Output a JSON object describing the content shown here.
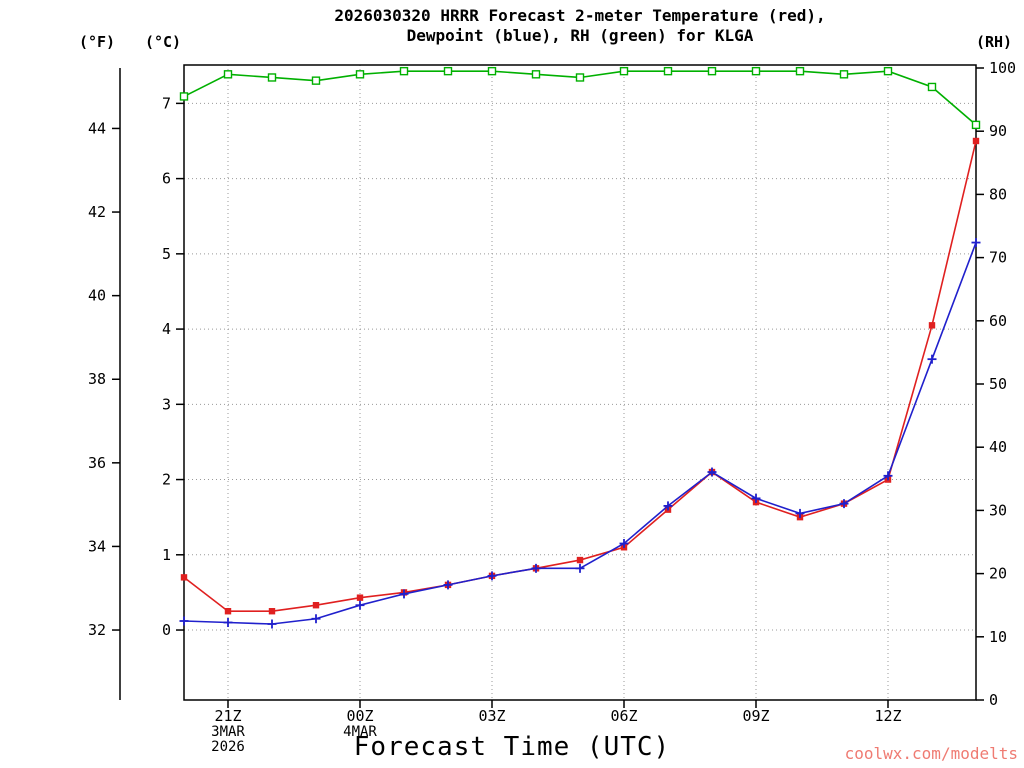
{
  "title": {
    "line1": "2026030320 HRRR Forecast 2-meter Temperature (red),",
    "line2": "Dewpoint (blue), RH (green) for KLGA"
  },
  "axes": {
    "left_f_label": "(°F)",
    "left_c_label": "(°C)",
    "right_label": "(RH)",
    "x_label": "Forecast Time (UTC)",
    "f_ticks": [
      32,
      34,
      36,
      38,
      40,
      42,
      44
    ],
    "c_ticks": [
      0,
      1,
      2,
      3,
      4,
      5,
      6,
      7
    ],
    "rh_ticks": [
      0,
      10,
      20,
      30,
      40,
      50,
      60,
      70,
      80,
      90,
      100
    ],
    "x_ticks": [
      "21Z",
      "00Z",
      "03Z",
      "06Z",
      "09Z",
      "12Z"
    ],
    "x_sub_labels": [
      {
        "tick": "21Z",
        "lines": [
          "3MAR",
          "2026"
        ]
      },
      {
        "tick": "00Z",
        "lines": [
          "4MAR"
        ]
      }
    ]
  },
  "watermark": "coolwx.com/modelts",
  "watermark_color": "#ef7b72",
  "chart_data": {
    "type": "line",
    "station": "KLGA",
    "model": "HRRR",
    "init": "2026030320",
    "x_hours": [
      "20Z",
      "21Z",
      "22Z",
      "23Z",
      "00Z",
      "01Z",
      "02Z",
      "03Z",
      "04Z",
      "05Z",
      "06Z",
      "07Z",
      "08Z",
      "09Z",
      "10Z",
      "11Z",
      "12Z",
      "13Z",
      "14Z"
    ],
    "c_axis_range": [
      -0.93,
      7.51
    ],
    "rh_axis_range": [
      0,
      100
    ],
    "grid": true,
    "series": [
      {
        "key": "temperature",
        "name": "2-meter Temperature",
        "axis": "celsius",
        "marker": "filled-square",
        "color": "#e02020",
        "values": [
          0.7,
          0.25,
          0.25,
          0.33,
          0.43,
          0.5,
          0.6,
          0.72,
          0.82,
          0.93,
          1.1,
          1.6,
          2.1,
          1.7,
          1.5,
          1.68,
          2.0,
          4.05,
          6.5
        ]
      },
      {
        "key": "dewpoint",
        "name": "Dewpoint",
        "axis": "celsius",
        "marker": "plus",
        "color": "#2020cc",
        "values": [
          0.12,
          0.1,
          0.08,
          0.15,
          0.33,
          0.48,
          0.6,
          0.72,
          0.82,
          0.82,
          1.15,
          1.65,
          2.1,
          1.75,
          1.55,
          1.68,
          2.05,
          3.6,
          5.15
        ]
      },
      {
        "key": "rh",
        "name": "RH",
        "axis": "rh",
        "marker": "open-square",
        "color": "#00b000",
        "values": [
          95.5,
          99,
          98.5,
          98,
          99,
          99.5,
          99.5,
          99.5,
          99,
          98.5,
          99.5,
          99.5,
          99.5,
          99.5,
          99.5,
          99,
          99.5,
          97,
          91
        ]
      }
    ]
  }
}
